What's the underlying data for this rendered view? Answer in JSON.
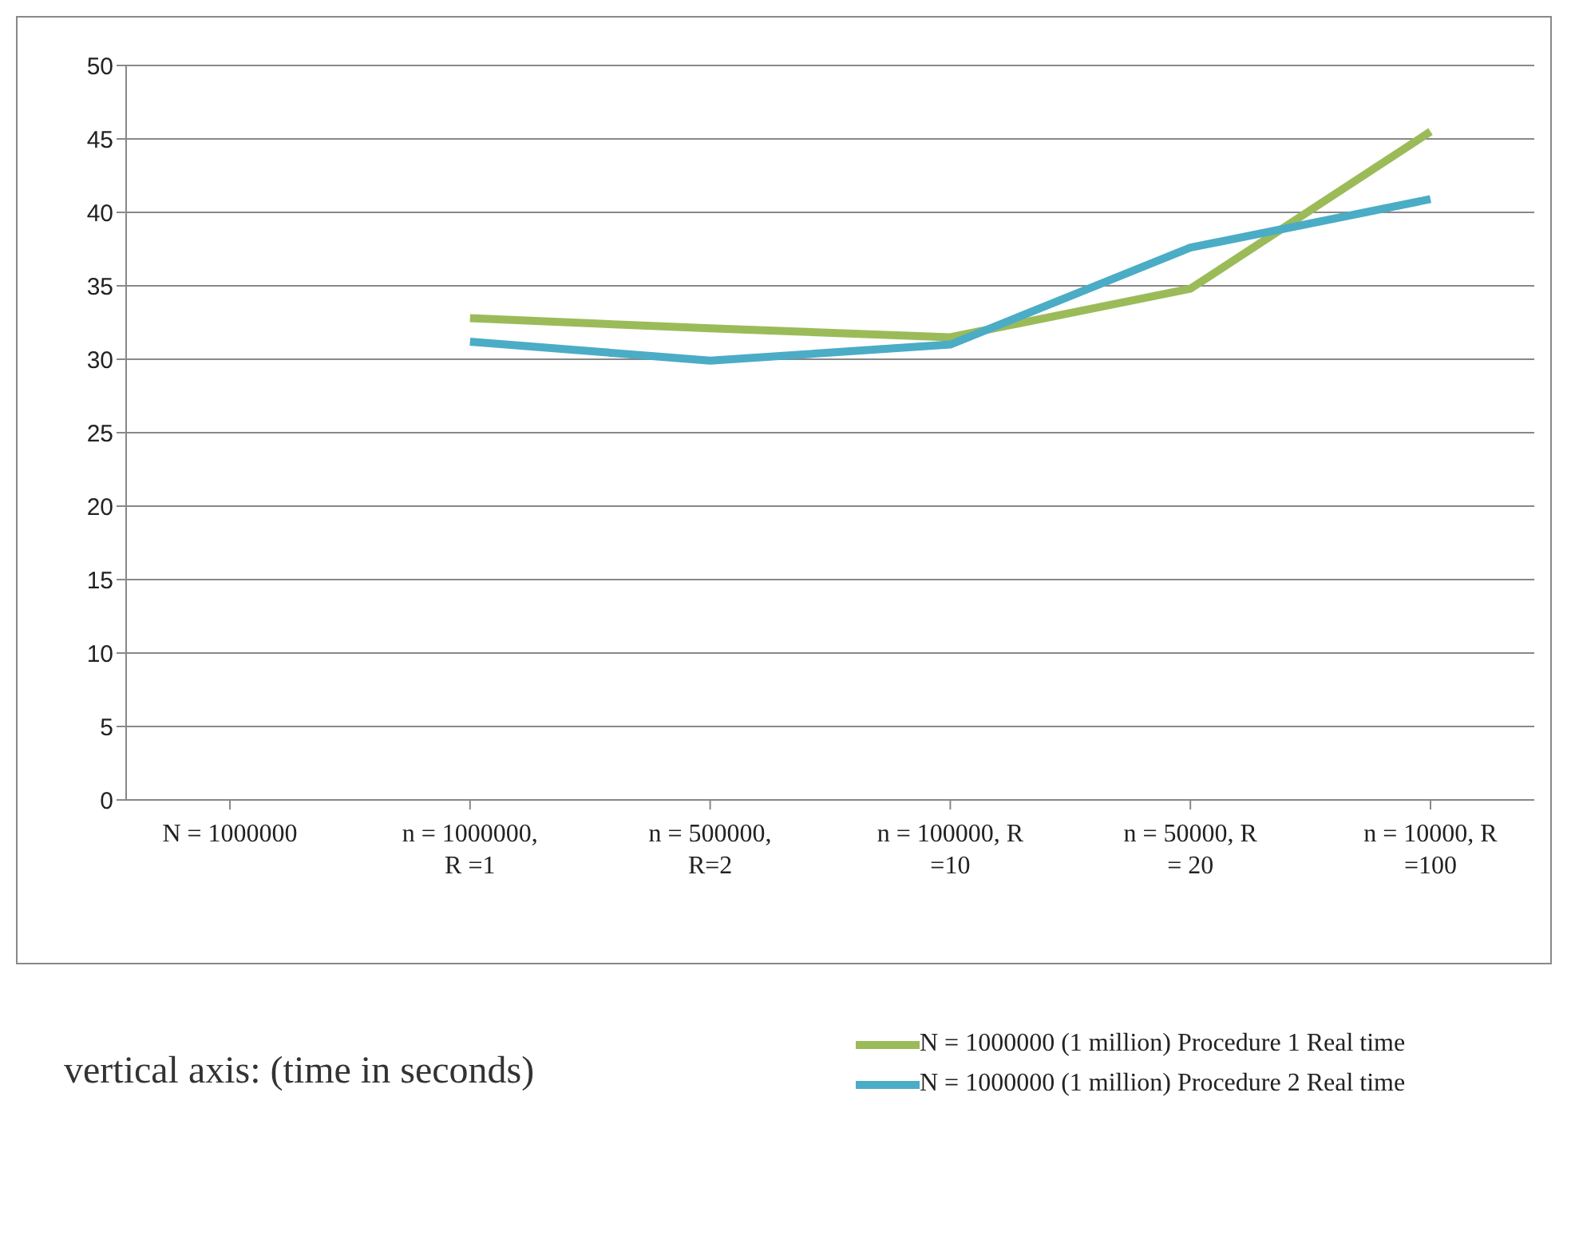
{
  "chart_data": {
    "type": "line",
    "categories": [
      "N = 1000000",
      "n = 1000000, R =1",
      "n = 500000, R=2",
      "n = 100000, R =10",
      "n = 50000, R = 20",
      "n = 10000, R =100"
    ],
    "series": [
      {
        "name": "N = 1000000 (1 million) Procedure 1 Real time",
        "color": "#9bbb59",
        "values": [
          null,
          32.8,
          32.1,
          31.5,
          34.8,
          45.5
        ]
      },
      {
        "name": "N = 1000000 (1 million) Procedure 2 Real time",
        "color": "#4bacc6",
        "values": [
          null,
          31.2,
          29.9,
          31.0,
          37.6,
          40.9
        ]
      }
    ],
    "ylim": [
      0,
      50
    ],
    "yticks": [
      0,
      5,
      10,
      15,
      20,
      25,
      30,
      35,
      40,
      45,
      50
    ],
    "grid": "y",
    "legend": "bottom right",
    "marker": "none",
    "line_style": "solid",
    "annotations": [
      "vertical axis: (time in seconds)"
    ]
  }
}
